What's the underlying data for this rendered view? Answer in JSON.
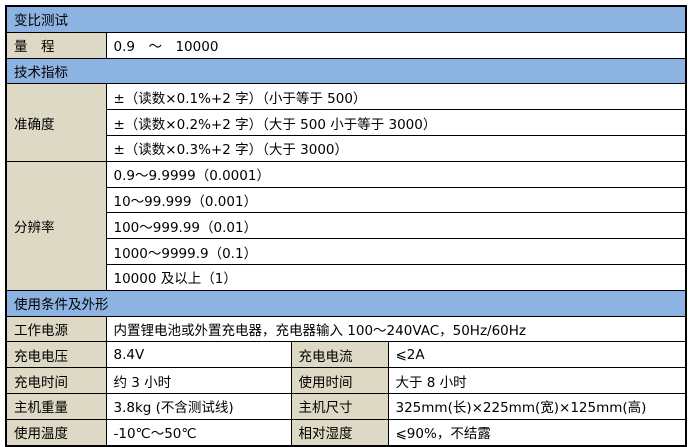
{
  "sections": {
    "ratio_test": "变比测试",
    "specs": "技术指标",
    "conditions": "使用条件及外形"
  },
  "range": {
    "label": "量　程",
    "value": "0.9　～　10000"
  },
  "accuracy": {
    "label": "准确度",
    "rows": [
      "±（读数×0.1%+2 字）（小于等于 500）",
      "±（读数×0.2%+2 字）（大于 500 小于等于 3000）",
      "±（读数×0.3%+2 字）（大于 3000）"
    ]
  },
  "resolution": {
    "label": "分辨率",
    "rows": [
      "0.9～9.9999（0.0001）",
      "10～99.999（0.001）",
      "100～999.99（0.01）",
      "1000～9999.9（0.1）",
      "10000 及以上（1）"
    ]
  },
  "power": {
    "label": "工作电源",
    "value": "内置锂电池或外置充电器，充电器输入 100～240VAC，50Hz/60Hz"
  },
  "pairs": [
    {
      "l1": "充电电压",
      "v1": "8.4V",
      "l2": "充电电流",
      "v2": "⩽2A"
    },
    {
      "l1": "充电时间",
      "v1": "约 3 小时",
      "l2": "使用时间",
      "v2": "大于 8 小时"
    },
    {
      "l1": "主机重量",
      "v1": "3.8kg (不含测试线)",
      "l2": "主机尺寸",
      "v2": "325mm(长)×225mm(宽)×125mm(高)"
    },
    {
      "l1": "使用温度",
      "v1": "-10℃～50℃",
      "l2": "相对湿度",
      "v2": "⩽90%，不结露"
    }
  ],
  "colors": {
    "section_bg": "#8db3e2",
    "label_bg": "#ddd9c4"
  }
}
